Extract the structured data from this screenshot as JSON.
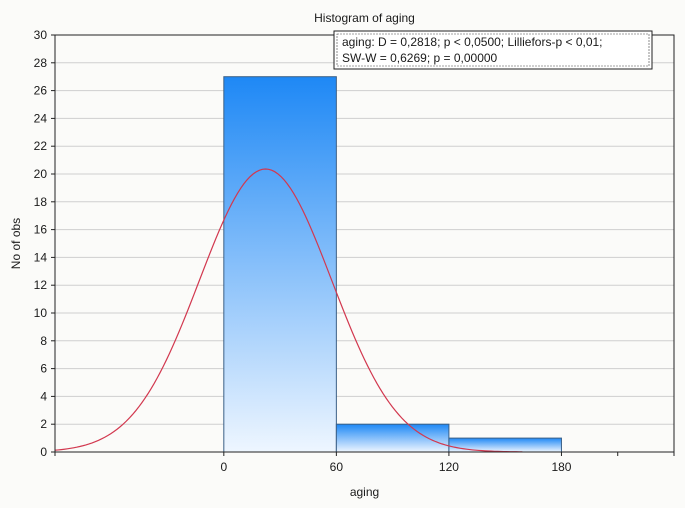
{
  "chart_data": {
    "type": "bar",
    "title": "Histogram of aging",
    "xlabel": "aging",
    "ylabel": "No of obs",
    "bins": [
      {
        "from": 0,
        "to": 60,
        "count": 27
      },
      {
        "from": 60,
        "to": 120,
        "count": 2
      },
      {
        "from": 120,
        "to": 180,
        "count": 1
      }
    ],
    "xlim": [
      -90,
      240
    ],
    "ylim": [
      0,
      30
    ],
    "x_ticks": [
      0,
      60,
      120,
      180
    ],
    "y_ticks": [
      0,
      2,
      4,
      6,
      8,
      10,
      12,
      14,
      16,
      18,
      20,
      22,
      24,
      26,
      28,
      30
    ],
    "normal_fit": {
      "mean": 22.26,
      "sd": 35.27,
      "n": 30,
      "bin_width": 60
    },
    "annotation": {
      "line1": "aging:   D = 0,2818; p < 0,0500; Lilliefors-p < 0,01;",
      "line2": "SW-W = 0,6269; p = 0,00000"
    },
    "grid": true,
    "colors": {
      "bar_top": "#1e88f5",
      "bar_bottom": "#eef6ff",
      "bar_stroke": "#3a5f86",
      "curve": "#d2384f",
      "grid": "#cfcfcf",
      "axis": "#222222"
    }
  }
}
